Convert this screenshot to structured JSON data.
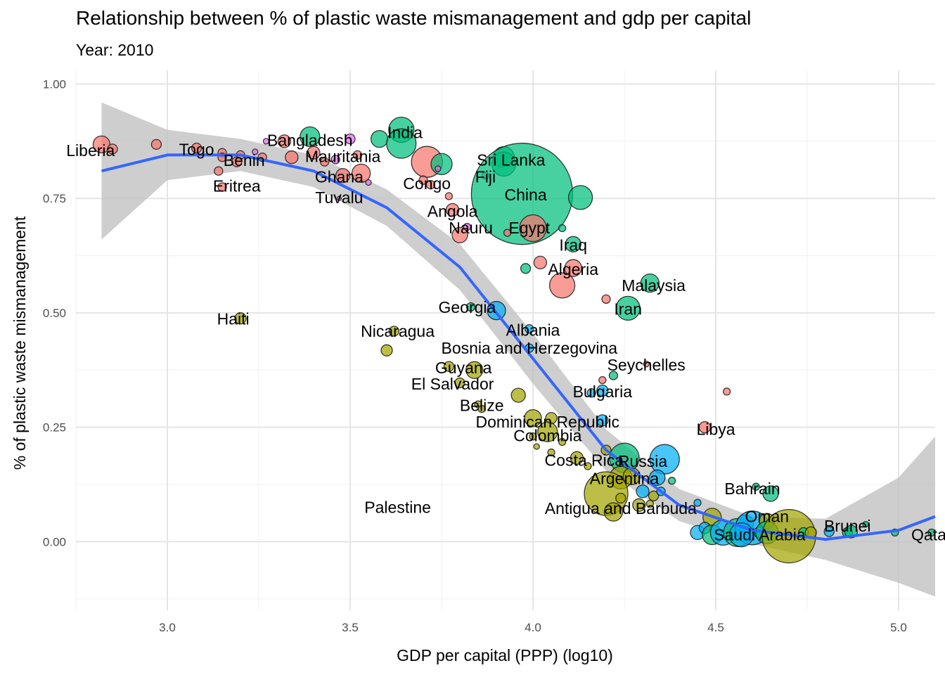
{
  "chart_data": {
    "type": "scatter",
    "title": "Relationship between % of plastic waste mismanagement and gdp per capital",
    "subtitle": "Year: 2010",
    "xlabel": "GDP per capital (PPP) (log10)",
    "ylabel": "% of plastic waste mismanagement",
    "xlim": [
      2.75,
      5.1
    ],
    "ylim": [
      -0.15,
      1.03
    ],
    "x_ticks": [
      "3.0",
      "3.5",
      "4.0",
      "4.5",
      "5.0"
    ],
    "x_tick_values": [
      3.0,
      3.5,
      4.0,
      4.5,
      5.0
    ],
    "y_ticks": [
      "0.00",
      "0.25",
      "0.50",
      "0.75",
      "1.00"
    ],
    "y_tick_values": [
      0.0,
      0.25,
      0.5,
      0.75,
      1.0
    ],
    "grid": true,
    "legend": "none",
    "colors": {
      "red": "#F8766D",
      "olive": "#A3A500",
      "green": "#00BF7D",
      "blue": "#00B0F6",
      "purple": "#E76BF3",
      "smooth_line": "#3366FF",
      "ribbon": "#BEBEBE"
    },
    "smooth": {
      "x": [
        2.82,
        3.0,
        3.2,
        3.4,
        3.6,
        3.8,
        4.0,
        4.2,
        4.4,
        4.6,
        4.8,
        5.0,
        5.1
      ],
      "y": [
        0.81,
        0.845,
        0.845,
        0.81,
        0.73,
        0.6,
        0.4,
        0.2,
        0.08,
        0.025,
        0.005,
        0.025,
        0.055
      ],
      "lower": [
        0.66,
        0.79,
        0.81,
        0.775,
        0.69,
        0.55,
        0.345,
        0.155,
        0.045,
        -0.005,
        -0.04,
        -0.09,
        -0.12
      ],
      "upper": [
        0.96,
        0.9,
        0.88,
        0.845,
        0.77,
        0.65,
        0.455,
        0.245,
        0.115,
        0.055,
        0.05,
        0.14,
        0.23
      ]
    },
    "points": [
      {
        "x": 2.82,
        "y": 0.868,
        "size": 12,
        "group": "red"
      },
      {
        "x": 2.85,
        "y": 0.858,
        "size": 7,
        "group": "red"
      },
      {
        "x": 2.97,
        "y": 0.868,
        "size": 7,
        "group": "red"
      },
      {
        "x": 3.08,
        "y": 0.86,
        "size": 7,
        "group": "red"
      },
      {
        "x": 3.15,
        "y": 0.85,
        "size": 6,
        "group": "red"
      },
      {
        "x": 3.15,
        "y": 0.84,
        "size": 6,
        "group": "red"
      },
      {
        "x": 3.14,
        "y": 0.81,
        "size": 6,
        "group": "red"
      },
      {
        "x": 3.15,
        "y": 0.775,
        "size": 6,
        "group": "red"
      },
      {
        "x": 3.2,
        "y": 0.845,
        "size": 6,
        "group": "red"
      },
      {
        "x": 3.24,
        "y": 0.852,
        "size": 4,
        "group": "purple"
      },
      {
        "x": 3.27,
        "y": 0.875,
        "size": 4,
        "group": "purple"
      },
      {
        "x": 3.19,
        "y": 0.83,
        "size": 7,
        "group": "red"
      },
      {
        "x": 3.26,
        "y": 0.84,
        "size": 6,
        "group": "red"
      },
      {
        "x": 3.32,
        "y": 0.875,
        "size": 9,
        "group": "red"
      },
      {
        "x": 3.34,
        "y": 0.84,
        "size": 9,
        "group": "red"
      },
      {
        "x": 3.39,
        "y": 0.885,
        "size": 14,
        "group": "green"
      },
      {
        "x": 3.4,
        "y": 0.85,
        "size": 9,
        "group": "red"
      },
      {
        "x": 3.43,
        "y": 0.83,
        "size": 6,
        "group": "red"
      },
      {
        "x": 3.46,
        "y": 0.835,
        "size": 6,
        "group": "purple"
      },
      {
        "x": 3.5,
        "y": 0.88,
        "size": 7,
        "group": "purple"
      },
      {
        "x": 3.48,
        "y": 0.8,
        "size": 10,
        "group": "red"
      },
      {
        "x": 3.53,
        "y": 0.805,
        "size": 13,
        "group": "red"
      },
      {
        "x": 3.52,
        "y": 0.845,
        "size": 6,
        "group": "red"
      },
      {
        "x": 3.55,
        "y": 0.785,
        "size": 4,
        "group": "purple"
      },
      {
        "x": 3.47,
        "y": 0.75,
        "size": 3,
        "group": "purple"
      },
      {
        "x": 3.58,
        "y": 0.88,
        "size": 12,
        "group": "green"
      },
      {
        "x": 3.64,
        "y": 0.9,
        "size": 18,
        "group": "green"
      },
      {
        "x": 3.64,
        "y": 0.87,
        "size": 21,
        "group": "green"
      },
      {
        "x": 3.71,
        "y": 0.83,
        "size": 22,
        "group": "red"
      },
      {
        "x": 3.75,
        "y": 0.825,
        "size": 15,
        "group": "green"
      },
      {
        "x": 3.74,
        "y": 0.815,
        "size": 4,
        "group": "purple"
      },
      {
        "x": 3.7,
        "y": 0.79,
        "size": 6,
        "group": "red"
      },
      {
        "x": 3.72,
        "y": 0.78,
        "size": 6,
        "group": "red"
      },
      {
        "x": 3.77,
        "y": 0.755,
        "size": 5,
        "group": "red"
      },
      {
        "x": 3.78,
        "y": 0.725,
        "size": 9,
        "group": "red"
      },
      {
        "x": 3.8,
        "y": 0.67,
        "size": 11,
        "group": "red"
      },
      {
        "x": 3.82,
        "y": 0.688,
        "size": 5,
        "group": "purple"
      },
      {
        "x": 3.87,
        "y": 0.8,
        "size": 5,
        "group": "purple"
      },
      {
        "x": 3.92,
        "y": 0.84,
        "size": 15,
        "group": "green"
      },
      {
        "x": 3.92,
        "y": 0.825,
        "size": 17,
        "group": "green"
      },
      {
        "x": 3.97,
        "y": 0.76,
        "size": 72,
        "group": "green"
      },
      {
        "x": 4.13,
        "y": 0.752,
        "size": 17,
        "group": "green"
      },
      {
        "x": 4.0,
        "y": 0.685,
        "size": 19,
        "group": "red"
      },
      {
        "x": 3.93,
        "y": 0.675,
        "size": 5,
        "group": "red"
      },
      {
        "x": 4.08,
        "y": 0.685,
        "size": 5,
        "group": "green"
      },
      {
        "x": 4.11,
        "y": 0.65,
        "size": 11,
        "group": "green"
      },
      {
        "x": 4.02,
        "y": 0.61,
        "size": 9,
        "group": "red"
      },
      {
        "x": 3.98,
        "y": 0.597,
        "size": 7,
        "group": "green"
      },
      {
        "x": 4.11,
        "y": 0.598,
        "size": 12,
        "group": "red"
      },
      {
        "x": 4.08,
        "y": 0.56,
        "size": 18,
        "group": "red"
      },
      {
        "x": 4.2,
        "y": 0.53,
        "size": 6,
        "group": "red"
      },
      {
        "x": 4.32,
        "y": 0.565,
        "size": 13,
        "group": "green"
      },
      {
        "x": 4.26,
        "y": 0.51,
        "size": 17,
        "group": "green"
      },
      {
        "x": 3.83,
        "y": 0.513,
        "size": 6,
        "group": "green"
      },
      {
        "x": 3.9,
        "y": 0.505,
        "size": 13,
        "group": "blue"
      },
      {
        "x": 3.2,
        "y": 0.488,
        "size": 8,
        "group": "olive"
      },
      {
        "x": 3.62,
        "y": 0.46,
        "size": 7,
        "group": "olive"
      },
      {
        "x": 3.6,
        "y": 0.418,
        "size": 8,
        "group": "olive"
      },
      {
        "x": 3.99,
        "y": 0.465,
        "size": 6,
        "group": "blue"
      },
      {
        "x": 3.99,
        "y": 0.423,
        "size": 6,
        "group": "blue"
      },
      {
        "x": 3.77,
        "y": 0.383,
        "size": 7,
        "group": "olive"
      },
      {
        "x": 3.84,
        "y": 0.375,
        "size": 12,
        "group": "olive"
      },
      {
        "x": 3.8,
        "y": 0.347,
        "size": 7,
        "group": "olive"
      },
      {
        "x": 3.96,
        "y": 0.32,
        "size": 10,
        "group": "olive"
      },
      {
        "x": 3.85,
        "y": 0.3,
        "size": 5,
        "group": "olive"
      },
      {
        "x": 3.86,
        "y": 0.29,
        "size": 5,
        "group": "olive"
      },
      {
        "x": 4.19,
        "y": 0.353,
        "size": 5,
        "group": "red"
      },
      {
        "x": 4.22,
        "y": 0.363,
        "size": 6,
        "group": "green"
      },
      {
        "x": 4.31,
        "y": 0.388,
        "size": 4,
        "group": "red"
      },
      {
        "x": 4.19,
        "y": 0.33,
        "size": 8,
        "group": "blue"
      },
      {
        "x": 4.16,
        "y": 0.325,
        "size": 6,
        "group": "blue"
      },
      {
        "x": 4.53,
        "y": 0.328,
        "size": 5,
        "group": "red"
      },
      {
        "x": 4.0,
        "y": 0.27,
        "size": 12,
        "group": "olive"
      },
      {
        "x": 4.05,
        "y": 0.27,
        "size": 8,
        "group": "olive"
      },
      {
        "x": 4.04,
        "y": 0.24,
        "size": 14,
        "group": "olive"
      },
      {
        "x": 4.0,
        "y": 0.23,
        "size": 5,
        "group": "olive"
      },
      {
        "x": 4.08,
        "y": 0.218,
        "size": 5,
        "group": "olive"
      },
      {
        "x": 4.01,
        "y": 0.208,
        "size": 4,
        "group": "olive"
      },
      {
        "x": 4.19,
        "y": 0.265,
        "size": 8,
        "group": "blue"
      },
      {
        "x": 4.47,
        "y": 0.25,
        "size": 8,
        "group": "red"
      },
      {
        "x": 4.05,
        "y": 0.195,
        "size": 5,
        "group": "olive"
      },
      {
        "x": 4.12,
        "y": 0.183,
        "size": 9,
        "group": "olive"
      },
      {
        "x": 4.2,
        "y": 0.2,
        "size": 7,
        "group": "olive"
      },
      {
        "x": 4.15,
        "y": 0.165,
        "size": 5,
        "group": "olive"
      },
      {
        "x": 4.25,
        "y": 0.183,
        "size": 21,
        "group": "green"
      },
      {
        "x": 4.36,
        "y": 0.18,
        "size": 21,
        "group": "blue"
      },
      {
        "x": 4.24,
        "y": 0.14,
        "size": 16,
        "group": "olive"
      },
      {
        "x": 4.27,
        "y": 0.143,
        "size": 12,
        "group": "olive"
      },
      {
        "x": 4.2,
        "y": 0.105,
        "size": 31,
        "group": "olive"
      },
      {
        "x": 4.22,
        "y": 0.065,
        "size": 13,
        "group": "olive"
      },
      {
        "x": 4.24,
        "y": 0.095,
        "size": 7,
        "group": "olive"
      },
      {
        "x": 4.3,
        "y": 0.11,
        "size": 9,
        "group": "blue"
      },
      {
        "x": 4.33,
        "y": 0.1,
        "size": 7,
        "group": "olive"
      },
      {
        "x": 4.29,
        "y": 0.08,
        "size": 9,
        "group": "olive"
      },
      {
        "x": 4.32,
        "y": 0.083,
        "size": 5,
        "group": "olive"
      },
      {
        "x": 4.35,
        "y": 0.11,
        "size": 6,
        "group": "blue"
      },
      {
        "x": 4.34,
        "y": 0.14,
        "size": 11,
        "group": "blue"
      },
      {
        "x": 4.38,
        "y": 0.133,
        "size": 5,
        "group": "green"
      },
      {
        "x": 4.45,
        "y": 0.085,
        "size": 5,
        "group": "blue"
      },
      {
        "x": 4.49,
        "y": 0.053,
        "size": 13,
        "group": "olive"
      },
      {
        "x": 4.45,
        "y": 0.02,
        "size": 10,
        "group": "blue"
      },
      {
        "x": 4.47,
        "y": 0.03,
        "size": 8,
        "group": "blue"
      },
      {
        "x": 4.49,
        "y": 0.015,
        "size": 14,
        "group": "green"
      },
      {
        "x": 4.52,
        "y": 0.02,
        "size": 18,
        "group": "blue"
      },
      {
        "x": 4.56,
        "y": 0.02,
        "size": 20,
        "group": "green"
      },
      {
        "x": 4.58,
        "y": 0.04,
        "size": 12,
        "group": "blue"
      },
      {
        "x": 4.6,
        "y": 0.03,
        "size": 24,
        "group": "blue"
      },
      {
        "x": 4.57,
        "y": 0.015,
        "size": 17,
        "group": "blue"
      },
      {
        "x": 4.61,
        "y": 0.12,
        "size": 5,
        "group": "green"
      },
      {
        "x": 4.65,
        "y": 0.105,
        "size": 11,
        "group": "green"
      },
      {
        "x": 4.64,
        "y": 0.045,
        "size": 11,
        "group": "olive"
      },
      {
        "x": 4.62,
        "y": 0.02,
        "size": 8,
        "group": "blue"
      },
      {
        "x": 4.64,
        "y": 0.02,
        "size": 16,
        "group": "green"
      },
      {
        "x": 4.7,
        "y": 0.012,
        "size": 38,
        "group": "olive"
      },
      {
        "x": 4.74,
        "y": 0.02,
        "size": 7,
        "group": "green"
      },
      {
        "x": 4.76,
        "y": 0.02,
        "size": 8,
        "group": "olive"
      },
      {
        "x": 4.81,
        "y": 0.022,
        "size": 7,
        "group": "blue"
      },
      {
        "x": 4.86,
        "y": 0.02,
        "size": 7,
        "group": "green"
      },
      {
        "x": 4.87,
        "y": 0.022,
        "size": 9,
        "group": "green"
      },
      {
        "x": 4.91,
        "y": 0.038,
        "size": 4,
        "group": "green"
      },
      {
        "x": 4.99,
        "y": 0.02,
        "size": 5,
        "group": "green"
      },
      {
        "x": 5.09,
        "y": 0.02,
        "size": 5,
        "group": "green"
      }
    ],
    "annotations": [
      {
        "text": "Liberia",
        "x": 2.79,
        "y": 0.855
      },
      {
        "text": "Togo",
        "x": 3.08,
        "y": 0.857
      },
      {
        "text": "Benin",
        "x": 3.21,
        "y": 0.833
      },
      {
        "text": "Eritrea",
        "x": 3.19,
        "y": 0.777
      },
      {
        "text": "Bangladesh",
        "x": 3.39,
        "y": 0.877
      },
      {
        "text": "Mauritania",
        "x": 3.48,
        "y": 0.842
      },
      {
        "text": "Ghana",
        "x": 3.47,
        "y": 0.797
      },
      {
        "text": "Tuvalu",
        "x": 3.47,
        "y": 0.752
      },
      {
        "text": "India",
        "x": 3.65,
        "y": 0.894
      },
      {
        "text": "Congo",
        "x": 3.71,
        "y": 0.783
      },
      {
        "text": "Sri Lanka",
        "x": 3.94,
        "y": 0.834
      },
      {
        "text": "Fiji",
        "x": 3.87,
        "y": 0.797
      },
      {
        "text": "China",
        "x": 3.98,
        "y": 0.758
      },
      {
        "text": "Angola",
        "x": 3.78,
        "y": 0.722
      },
      {
        "text": "Nauru",
        "x": 3.83,
        "y": 0.686
      },
      {
        "text": "Egypt",
        "x": 3.99,
        "y": 0.686
      },
      {
        "text": "Iraq",
        "x": 4.11,
        "y": 0.648
      },
      {
        "text": "Algeria",
        "x": 4.11,
        "y": 0.595
      },
      {
        "text": "Malaysia",
        "x": 4.33,
        "y": 0.56
      },
      {
        "text": "Iran",
        "x": 4.26,
        "y": 0.508
      },
      {
        "text": "Georgia",
        "x": 3.82,
        "y": 0.512
      },
      {
        "text": "Haiti",
        "x": 3.18,
        "y": 0.487
      },
      {
        "text": "Nicaragua",
        "x": 3.63,
        "y": 0.46
      },
      {
        "text": "Albania",
        "x": 4.0,
        "y": 0.462
      },
      {
        "text": "Bosnia and Herzegovina",
        "x": 3.99,
        "y": 0.423
      },
      {
        "text": "Seychelles",
        "x": 4.31,
        "y": 0.386
      },
      {
        "text": "Guyana",
        "x": 3.81,
        "y": 0.38
      },
      {
        "text": "El Salvador",
        "x": 3.78,
        "y": 0.345
      },
      {
        "text": "Bulgaria",
        "x": 4.19,
        "y": 0.328
      },
      {
        "text": "Belize",
        "x": 3.86,
        "y": 0.298
      },
      {
        "text": "Dominican Republic",
        "x": 4.04,
        "y": 0.262
      },
      {
        "text": "Libya",
        "x": 4.5,
        "y": 0.246
      },
      {
        "text": "Colombia",
        "x": 4.04,
        "y": 0.232
      },
      {
        "text": "Costa Rica",
        "x": 4.14,
        "y": 0.178
      },
      {
        "text": "Russia",
        "x": 4.3,
        "y": 0.176
      },
      {
        "text": "Argentina",
        "x": 4.25,
        "y": 0.138
      },
      {
        "text": "Bahrain",
        "x": 4.6,
        "y": 0.116
      },
      {
        "text": "Palestine",
        "x": 3.63,
        "y": 0.075
      },
      {
        "text": "Antigua and Barbuda",
        "x": 4.24,
        "y": 0.073
      },
      {
        "text": "Oman",
        "x": 4.64,
        "y": 0.055
      },
      {
        "text": "Brunei",
        "x": 4.86,
        "y": 0.034
      },
      {
        "text": "Qatar",
        "x": 5.09,
        "y": 0.015
      },
      {
        "text": "Saudi Arabia",
        "x": 4.62,
        "y": 0.015
      }
    ]
  }
}
